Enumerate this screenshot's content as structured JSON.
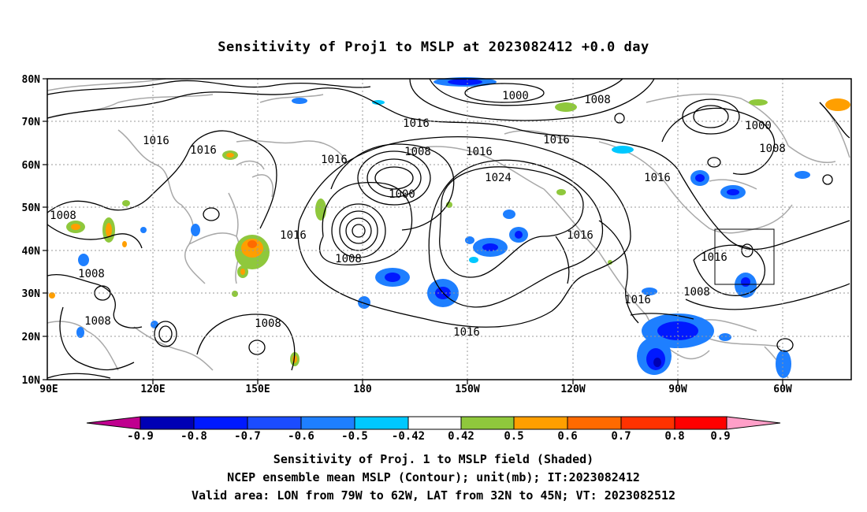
{
  "title": "Sensitivity of Proj1 to MSLP at 2023082412 +0.0 day",
  "lat_labels": [
    "80N",
    "70N",
    "60N",
    "50N",
    "40N",
    "30N",
    "20N",
    "10N"
  ],
  "lon_labels": [
    "90E",
    "120E",
    "150E",
    "180",
    "150W",
    "120W",
    "90W",
    "60W"
  ],
  "contour_labels": [
    "1000",
    "1008",
    "1016",
    "1016",
    "1016",
    "1016",
    "1008",
    "1000",
    "1008",
    "1016",
    "1024",
    "1016",
    "1008",
    "1016",
    "1016",
    "1016",
    "1016",
    "1016",
    "1008",
    "1008",
    "1008",
    "1008",
    "1000",
    "1008"
  ],
  "colorbar": {
    "labels": [
      "-0.9",
      "-0.8",
      "-0.7",
      "-0.6",
      "-0.5",
      "-0.42",
      "0.42",
      "0.5",
      "0.6",
      "0.7",
      "0.8",
      "0.9"
    ],
    "colors": [
      "#c0008f",
      "#0000b4",
      "#0019ff",
      "#1b4cff",
      "#1e7fff",
      "#00c8ff",
      "#ffffff",
      "#8fc83c",
      "#ff9f00",
      "#ff6a00",
      "#ff3200",
      "#ff0000",
      "#ff9fc8"
    ]
  },
  "captions": [
    "Sensitivity of Proj. 1 to MSLP field (Shaded)",
    "NCEP ensemble mean MSLP (Contour); unit(mb); IT:2023082412",
    "Valid area: LON from 79W to 62W, LAT from 32N to 45N; VT: 2023082512"
  ]
}
